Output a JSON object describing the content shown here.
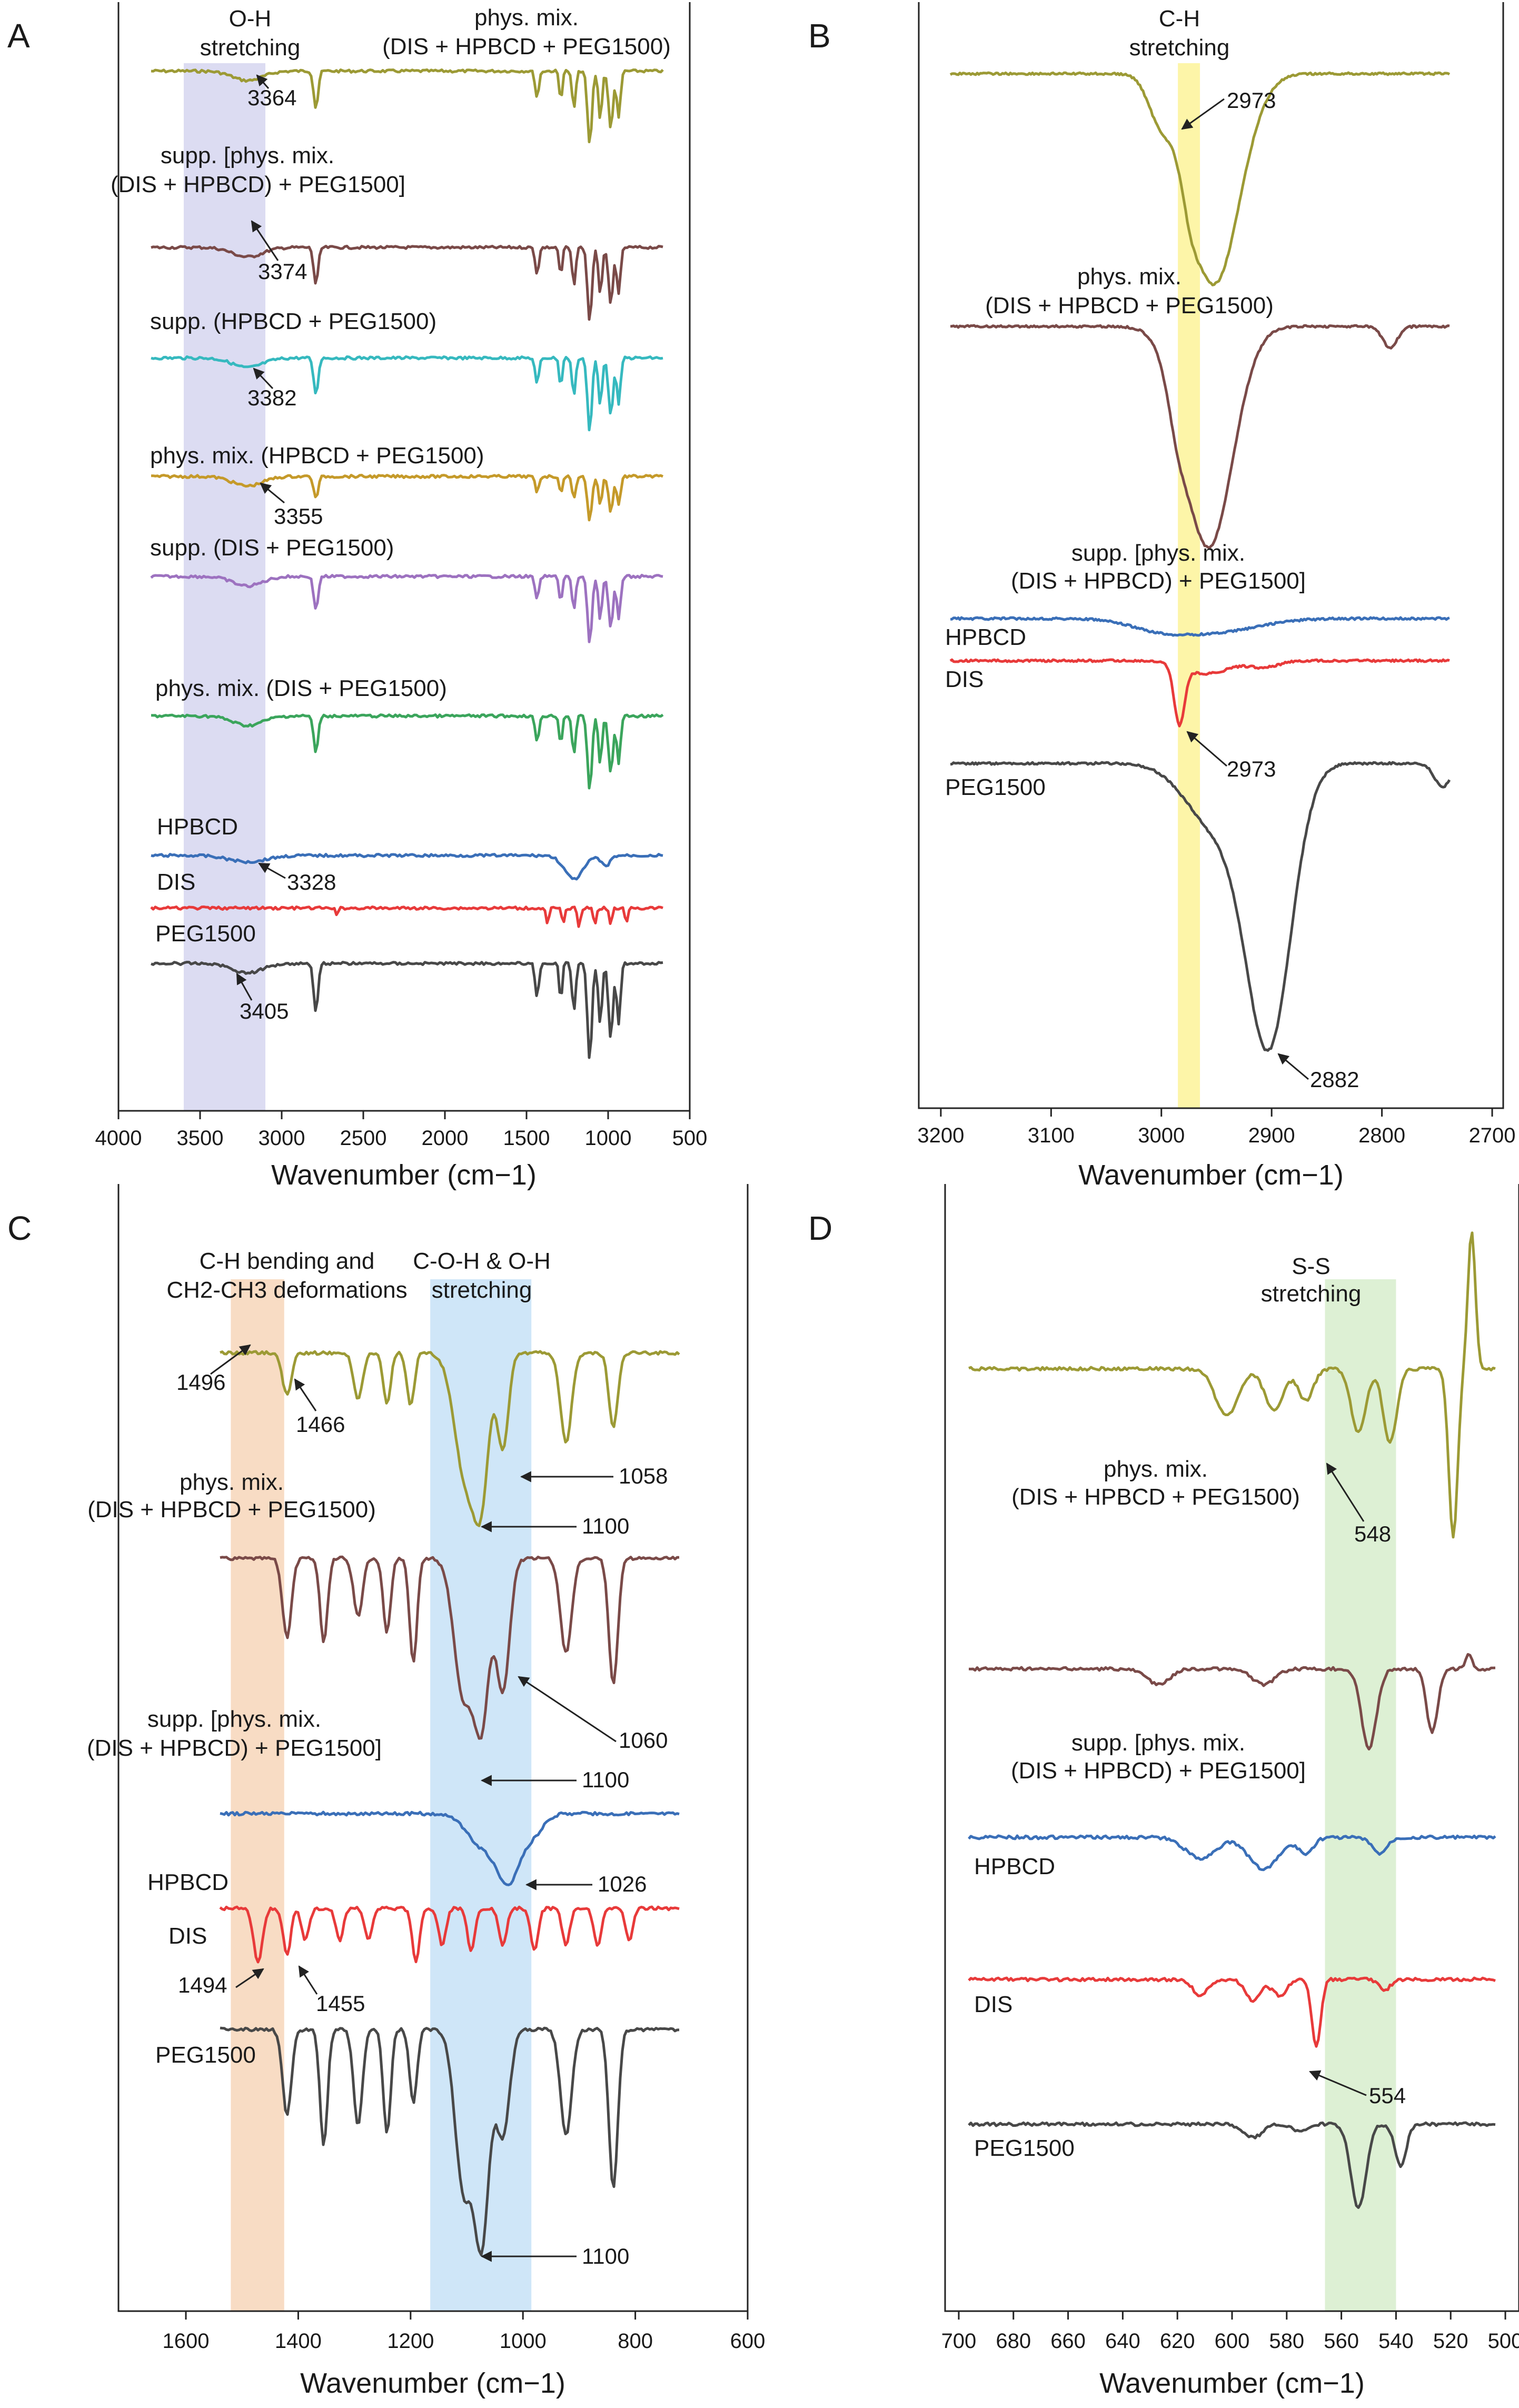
{
  "figure": {
    "panels": [
      "A",
      "B",
      "C",
      "D"
    ],
    "x_axis_title": "Wavenumber (cm−1)"
  },
  "colors": {
    "olive": "#9c9a35",
    "brown": "#7a4a48",
    "cyan": "#36b9bf",
    "gold": "#c59a2a",
    "purple": "#9d72c0",
    "green": "#3ba55c",
    "blue": "#3a6fb8",
    "red": "#e83a3a",
    "dark": "#484848",
    "band_A": "#dcdcf2",
    "band_B": "#fdf5a8",
    "band_C1": "#f8dcc4",
    "band_C2": "#cfe6f8",
    "band_D": "#ddf0d4"
  },
  "chart_data": [
    {
      "panel": "A",
      "type": "line",
      "xlabel": "Wavenumber (cm−1)",
      "xlim": [
        4000,
        500
      ],
      "ticks": [
        4000,
        3500,
        3000,
        2500,
        2000,
        1500,
        1000,
        500
      ],
      "band": {
        "from": 3600,
        "to": 3100,
        "label_line1": "O-H",
        "label_line2": "stretching"
      },
      "series": [
        {
          "name": "phys. mix. (DIS + HPBCD + PEG1500)",
          "label_line1": "phys. mix.",
          "label_line2": "(DIS + HPBCD + PEG1500)",
          "color": "olive",
          "peak": "3364"
        },
        {
          "name": "supp. [phys. mix. (DIS + HPBCD) + PEG1500]",
          "label_line1": "supp. [phys. mix.",
          "label_line2": "(DIS + HPBCD) + PEG1500]",
          "color": "brown",
          "peak": "3374"
        },
        {
          "name": "supp. (HPBCD + PEG1500)",
          "label_line1": "supp. (HPBCD + PEG1500)",
          "color": "cyan",
          "peak": "3382"
        },
        {
          "name": "phys. mix. (HPBCD + PEG1500)",
          "label_line1": "phys. mix. (HPBCD + PEG1500)",
          "color": "gold",
          "peak": "3355"
        },
        {
          "name": "supp. (DIS + PEG1500)",
          "label_line1": "supp. (DIS + PEG1500)",
          "color": "purple"
        },
        {
          "name": "phys. mix. (DIS + PEG1500)",
          "label_line1": "phys. mix. (DIS + PEG1500)",
          "color": "green"
        },
        {
          "name": "HPBCD",
          "label_line1": "HPBCD",
          "color": "blue",
          "peak": "3328"
        },
        {
          "name": "DIS",
          "label_line1": "DIS",
          "color": "red"
        },
        {
          "name": "PEG1500",
          "label_line1": "PEG1500",
          "color": "dark",
          "peak": "3405"
        }
      ]
    },
    {
      "panel": "B",
      "type": "line",
      "xlabel": "Wavenumber (cm−1)",
      "xlim": [
        3220,
        2690
      ],
      "ticks": [
        3200,
        3100,
        3000,
        2900,
        2800,
        2700
      ],
      "band": {
        "from": 2985,
        "to": 2965,
        "label_line1": "C-H",
        "label_line2": "stretching"
      },
      "series": [
        {
          "name": "phys. mix. (DIS + HPBCD + PEG1500)",
          "label_line1": "phys. mix.",
          "label_line2": "(DIS + HPBCD + PEG1500)",
          "color": "olive",
          "peak": "2973"
        },
        {
          "name": "supp. [phys. mix. (DIS + HPBCD) + PEG1500]",
          "label_line1": "supp. [phys. mix.",
          "label_line2": "(DIS + HPBCD) + PEG1500]",
          "color": "brown"
        },
        {
          "name": "HPBCD",
          "label_line1": "HPBCD",
          "color": "blue"
        },
        {
          "name": "DIS",
          "label_line1": "DIS",
          "color": "red",
          "peak": "2973"
        },
        {
          "name": "PEG1500",
          "label_line1": "PEG1500",
          "color": "dark",
          "peak": "2882"
        }
      ]
    },
    {
      "panel": "C",
      "type": "line",
      "xlabel": "Wavenumber (cm−1)",
      "xlim": [
        1720,
        600
      ],
      "ticks": [
        1600,
        1400,
        1200,
        1000,
        800,
        600
      ],
      "bands": [
        {
          "from": 1520,
          "to": 1425,
          "label_line1": "C-H bending and",
          "label_line2": "CH2-CH3 deformations"
        },
        {
          "from": 1165,
          "to": 985,
          "label_line1": "C-O-H & O-H",
          "label_line2": "stretching"
        }
      ],
      "series": [
        {
          "name": "phys. mix. (DIS + HPBCD + PEG1500)",
          "label_line1": "phys. mix.",
          "label_line2": "(DIS + HPBCD + PEG1500)",
          "color": "olive",
          "peaks": [
            "1496",
            "1466",
            "1058",
            "1100"
          ]
        },
        {
          "name": "supp. [phys. mix. (DIS + HPBCD) + PEG1500]",
          "label_line1": "supp. [phys. mix.",
          "label_line2": "(DIS + HPBCD) + PEG1500]",
          "color": "brown",
          "peaks": [
            "1060",
            "1100"
          ]
        },
        {
          "name": "HPBCD",
          "label_line1": "HPBCD",
          "color": "blue",
          "peaks": [
            "1026"
          ]
        },
        {
          "name": "DIS",
          "label_line1": "DIS",
          "color": "red",
          "peaks": [
            "1494",
            "1455"
          ]
        },
        {
          "name": "PEG1500",
          "label_line1": "PEG1500",
          "color": "dark",
          "peaks": [
            "1100"
          ]
        }
      ]
    },
    {
      "panel": "D",
      "type": "line",
      "xlabel": "Wavenumber (cm−1)",
      "xlim": [
        705,
        495
      ],
      "ticks": [
        700,
        680,
        660,
        640,
        620,
        600,
        580,
        560,
        540,
        520,
        500
      ],
      "band": {
        "from": 566,
        "to": 540,
        "label_line1": "S-S",
        "label_line2": "stretching"
      },
      "series": [
        {
          "name": "phys. mix. (DIS + HPBCD + PEG1500)",
          "label_line1": "phys. mix.",
          "label_line2": "(DIS + HPBCD + PEG1500)",
          "color": "olive",
          "peak": "548"
        },
        {
          "name": "supp. [phys. mix. (DIS + HPBCD) + PEG1500]",
          "label_line1": "supp. [phys. mix.",
          "label_line2": "(DIS + HPBCD) + PEG1500]",
          "color": "brown"
        },
        {
          "name": "HPBCD",
          "label_line1": "HPBCD",
          "color": "blue"
        },
        {
          "name": "DIS",
          "label_line1": "DIS",
          "color": "red",
          "peak": "554"
        },
        {
          "name": "PEG1500",
          "label_line1": "PEG1500",
          "color": "dark"
        }
      ]
    }
  ]
}
